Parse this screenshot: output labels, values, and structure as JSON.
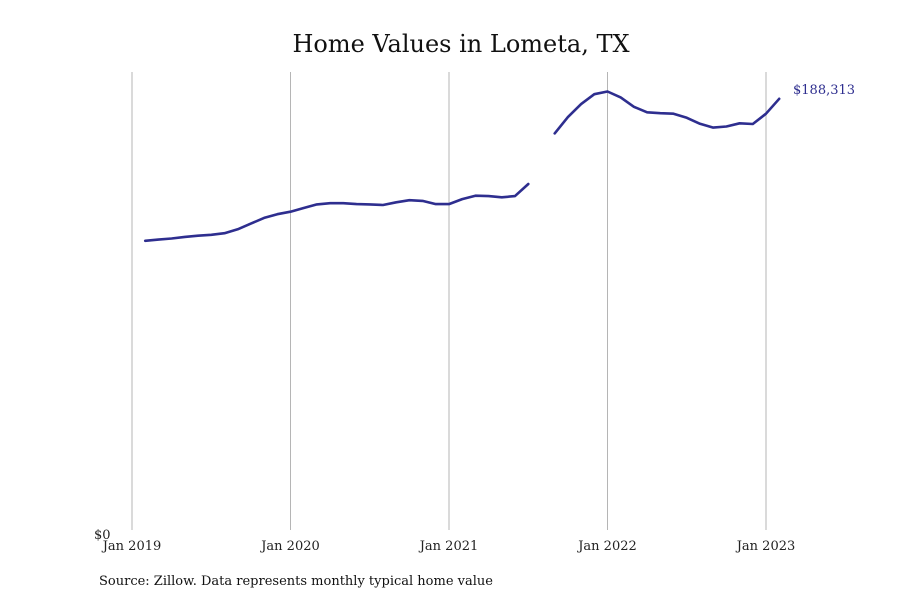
{
  "chart_data": {
    "type": "line",
    "title": "Home Values in Lometa, TX",
    "xlabel": "",
    "ylabel": "",
    "x_ticks": [
      "Jan 2019",
      "Jan 2020",
      "Jan 2021",
      "Jan 2022",
      "Jan 2023"
    ],
    "y_ticks": [
      "$0"
    ],
    "xlim": [
      "2018-11",
      "2023-07"
    ],
    "ylim": [
      0,
      200000
    ],
    "grid": "vertical",
    "legend": "none",
    "line_color": "#2e2e8f",
    "series": [
      {
        "segments": [
          [
            {
              "x": "2019-02",
              "y": 126300
            },
            {
              "x": "2019-03",
              "y": 126800
            },
            {
              "x": "2019-04",
              "y": 127300
            },
            {
              "x": "2019-05",
              "y": 128000
            },
            {
              "x": "2019-06",
              "y": 128500
            },
            {
              "x": "2019-07",
              "y": 128900
            },
            {
              "x": "2019-08",
              "y": 129600
            },
            {
              "x": "2019-09",
              "y": 131300
            },
            {
              "x": "2019-10",
              "y": 133800
            },
            {
              "x": "2019-11",
              "y": 136300
            },
            {
              "x": "2019-12",
              "y": 137900
            },
            {
              "x": "2020-01",
              "y": 139000
            },
            {
              "x": "2020-02",
              "y": 140600
            },
            {
              "x": "2020-03",
              "y": 142200
            },
            {
              "x": "2020-04",
              "y": 142700
            },
            {
              "x": "2020-05",
              "y": 142700
            },
            {
              "x": "2020-06",
              "y": 142300
            },
            {
              "x": "2020-07",
              "y": 142200
            },
            {
              "x": "2020-08",
              "y": 141900
            },
            {
              "x": "2020-09",
              "y": 143100
            },
            {
              "x": "2020-10",
              "y": 144000
            },
            {
              "x": "2020-11",
              "y": 143700
            },
            {
              "x": "2020-12",
              "y": 142300
            },
            {
              "x": "2021-01",
              "y": 142300
            },
            {
              "x": "2021-02",
              "y": 144500
            },
            {
              "x": "2021-03",
              "y": 146000
            },
            {
              "x": "2021-04",
              "y": 145800
            },
            {
              "x": "2021-05",
              "y": 145300
            },
            {
              "x": "2021-06",
              "y": 145800
            },
            {
              "x": "2021-07",
              "y": 151100
            }
          ],
          [
            {
              "x": "2021-09",
              "y": 173200
            },
            {
              "x": "2021-10",
              "y": 180300
            },
            {
              "x": "2021-11",
              "y": 186000
            },
            {
              "x": "2021-12",
              "y": 190300
            },
            {
              "x": "2022-01",
              "y": 191500
            },
            {
              "x": "2022-02",
              "y": 188900
            },
            {
              "x": "2022-03",
              "y": 184800
            },
            {
              "x": "2022-04",
              "y": 182400
            },
            {
              "x": "2022-05",
              "y": 182000
            },
            {
              "x": "2022-06",
              "y": 181800
            },
            {
              "x": "2022-07",
              "y": 180000
            },
            {
              "x": "2022-08",
              "y": 177400
            },
            {
              "x": "2022-09",
              "y": 175700
            },
            {
              "x": "2022-10",
              "y": 176200
            },
            {
              "x": "2022-11",
              "y": 177600
            },
            {
              "x": "2022-12",
              "y": 177300
            },
            {
              "x": "2023-01",
              "y": 181800
            },
            {
              "x": "2023-02",
              "y": 188313
            }
          ]
        ]
      }
    ],
    "end_label": "$188,313"
  },
  "source_note": "Source: Zillow. Data represents monthly typical home value"
}
